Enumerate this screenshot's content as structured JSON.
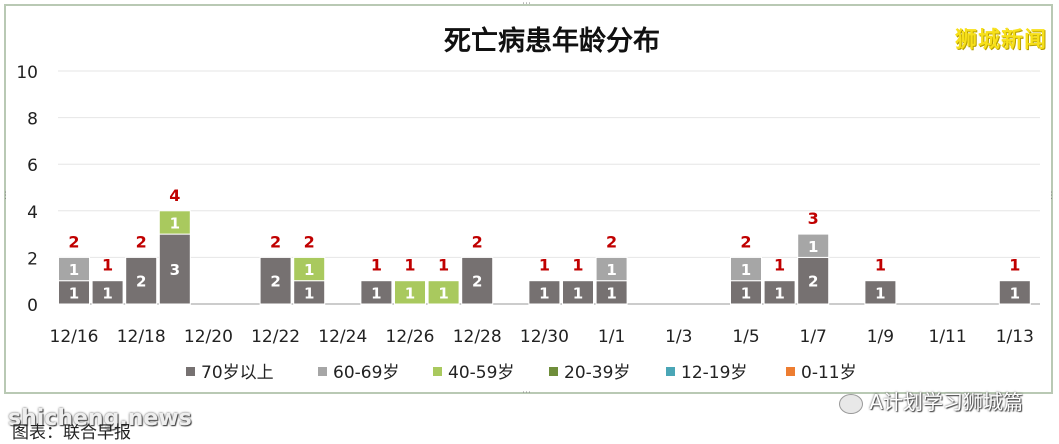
{
  "chart_data": {
    "type": "bar",
    "stacked": true,
    "title": "死亡病患年龄分布",
    "ylim": [
      0,
      10
    ],
    "yticks": [
      0,
      2,
      4,
      6,
      8,
      10
    ],
    "x_tick_labels": [
      "12/16",
      "12/18",
      "12/20",
      "12/22",
      "12/24",
      "12/26",
      "12/28",
      "12/30",
      "1/1",
      "1/3",
      "1/5",
      "1/7",
      "1/9",
      "1/11",
      "1/13"
    ],
    "categories": [
      "12/16",
      "12/17",
      "12/18",
      "12/19",
      "12/20",
      "12/21",
      "12/22",
      "12/23",
      "12/24",
      "12/25",
      "12/26",
      "12/27",
      "12/28",
      "12/29",
      "12/30",
      "12/31",
      "1/1",
      "1/2",
      "1/3",
      "1/4",
      "1/5",
      "1/6",
      "1/7",
      "1/8",
      "1/9",
      "1/10",
      "1/11",
      "1/12",
      "1/13"
    ],
    "series": [
      {
        "name": "70岁以上",
        "color": "#767171",
        "values": [
          1,
          1,
          2,
          3,
          0,
          0,
          2,
          1,
          0,
          1,
          0,
          0,
          2,
          0,
          1,
          1,
          1,
          0,
          0,
          0,
          1,
          1,
          2,
          0,
          1,
          0,
          0,
          0,
          1
        ]
      },
      {
        "name": "60-69岁",
        "color": "#a6a6a6",
        "values": [
          1,
          0,
          0,
          0,
          0,
          0,
          0,
          0,
          0,
          0,
          0,
          0,
          0,
          0,
          0,
          0,
          1,
          0,
          0,
          0,
          1,
          0,
          1,
          0,
          0,
          0,
          0,
          0,
          0
        ]
      },
      {
        "name": "40-59岁",
        "color": "#a9c95e",
        "values": [
          0,
          0,
          0,
          1,
          0,
          0,
          0,
          1,
          0,
          0,
          1,
          1,
          0,
          0,
          0,
          0,
          0,
          0,
          0,
          0,
          0,
          0,
          0,
          0,
          0,
          0,
          0,
          0,
          0
        ]
      },
      {
        "name": "20-39岁",
        "color": "#6f8e3b",
        "values": [
          0,
          0,
          0,
          0,
          0,
          0,
          0,
          0,
          0,
          0,
          0,
          0,
          0,
          0,
          0,
          0,
          0,
          0,
          0,
          0,
          0,
          0,
          0,
          0,
          0,
          0,
          0,
          0,
          0
        ]
      },
      {
        "name": "12-19岁",
        "color": "#4aa6b6",
        "values": [
          0,
          0,
          0,
          0,
          0,
          0,
          0,
          0,
          0,
          0,
          0,
          0,
          0,
          0,
          0,
          0,
          0,
          0,
          0,
          0,
          0,
          0,
          0,
          0,
          0,
          0,
          0,
          0,
          0
        ]
      },
      {
        "name": "0-11岁",
        "color": "#ed7d31",
        "values": [
          0,
          0,
          0,
          0,
          0,
          0,
          0,
          0,
          0,
          0,
          0,
          0,
          0,
          0,
          0,
          0,
          0,
          0,
          0,
          0,
          0,
          0,
          0,
          0,
          0,
          0,
          0,
          0,
          0
        ]
      }
    ],
    "totals": [
      2,
      1,
      2,
      4,
      0,
      0,
      2,
      2,
      0,
      1,
      1,
      1,
      2,
      0,
      1,
      1,
      2,
      0,
      0,
      0,
      2,
      1,
      3,
      0,
      1,
      0,
      0,
      0,
      1
    ],
    "total_label_color": "#c00000",
    "grid": true,
    "legend_position": "bottom"
  },
  "watermark": "狮城新闻",
  "site_text": "shicheng.news",
  "caption": "图表：联合早报",
  "wechat_text": "A计划学习狮城篇"
}
